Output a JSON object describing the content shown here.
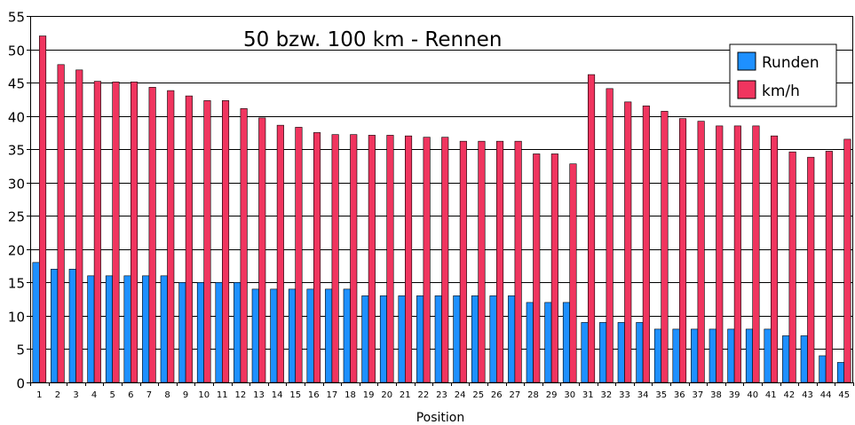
{
  "chart_data": {
    "type": "bar",
    "title": "50 bzw. 100 km - Rennen",
    "xlabel": "Position",
    "ylabel": "",
    "ylim": [
      0,
      55
    ],
    "yticks": [
      0,
      5,
      10,
      15,
      20,
      25,
      30,
      35,
      40,
      45,
      50,
      55
    ],
    "grid": true,
    "legend_position": "top-right",
    "categories": [
      "1",
      "2",
      "3",
      "4",
      "5",
      "6",
      "7",
      "8",
      "9",
      "10",
      "11",
      "12",
      "13",
      "14",
      "15",
      "16",
      "17",
      "18",
      "19",
      "20",
      "21",
      "22",
      "23",
      "24",
      "25",
      "26",
      "27",
      "28",
      "29",
      "30",
      "31",
      "32",
      "33",
      "34",
      "35",
      "36",
      "37",
      "38",
      "39",
      "40",
      "41",
      "42",
      "43",
      "44",
      "45"
    ],
    "series": [
      {
        "name": "Runden",
        "color": "#1e90ff",
        "values": [
          18,
          17,
          17,
          16,
          16,
          16,
          16,
          16,
          15,
          15,
          15,
          15,
          14,
          14,
          14,
          14,
          14,
          14,
          13,
          13,
          13,
          13,
          13,
          13,
          13,
          13,
          13,
          12,
          12,
          12,
          9,
          9,
          9,
          9,
          8,
          8,
          8,
          8,
          8,
          8,
          8,
          7,
          7,
          4,
          3
        ]
      },
      {
        "name": "km/h",
        "color": "#f0355f",
        "values": [
          52,
          47.7,
          46.9,
          45.2,
          45.1,
          45.1,
          44.3,
          43.8,
          43,
          42.3,
          42.3,
          41.1,
          39.7,
          38.6,
          38.3,
          37.5,
          37.2,
          37.2,
          37.1,
          37.1,
          37,
          36.8,
          36.8,
          36.2,
          36.2,
          36.2,
          36.2,
          34.3,
          34.3,
          32.8,
          46.2,
          44.1,
          42.1,
          41.5,
          40.7,
          39.6,
          39.2,
          38.5,
          38.5,
          38.5,
          37,
          34.6,
          33.8,
          34.7,
          36.5
        ]
      }
    ]
  }
}
